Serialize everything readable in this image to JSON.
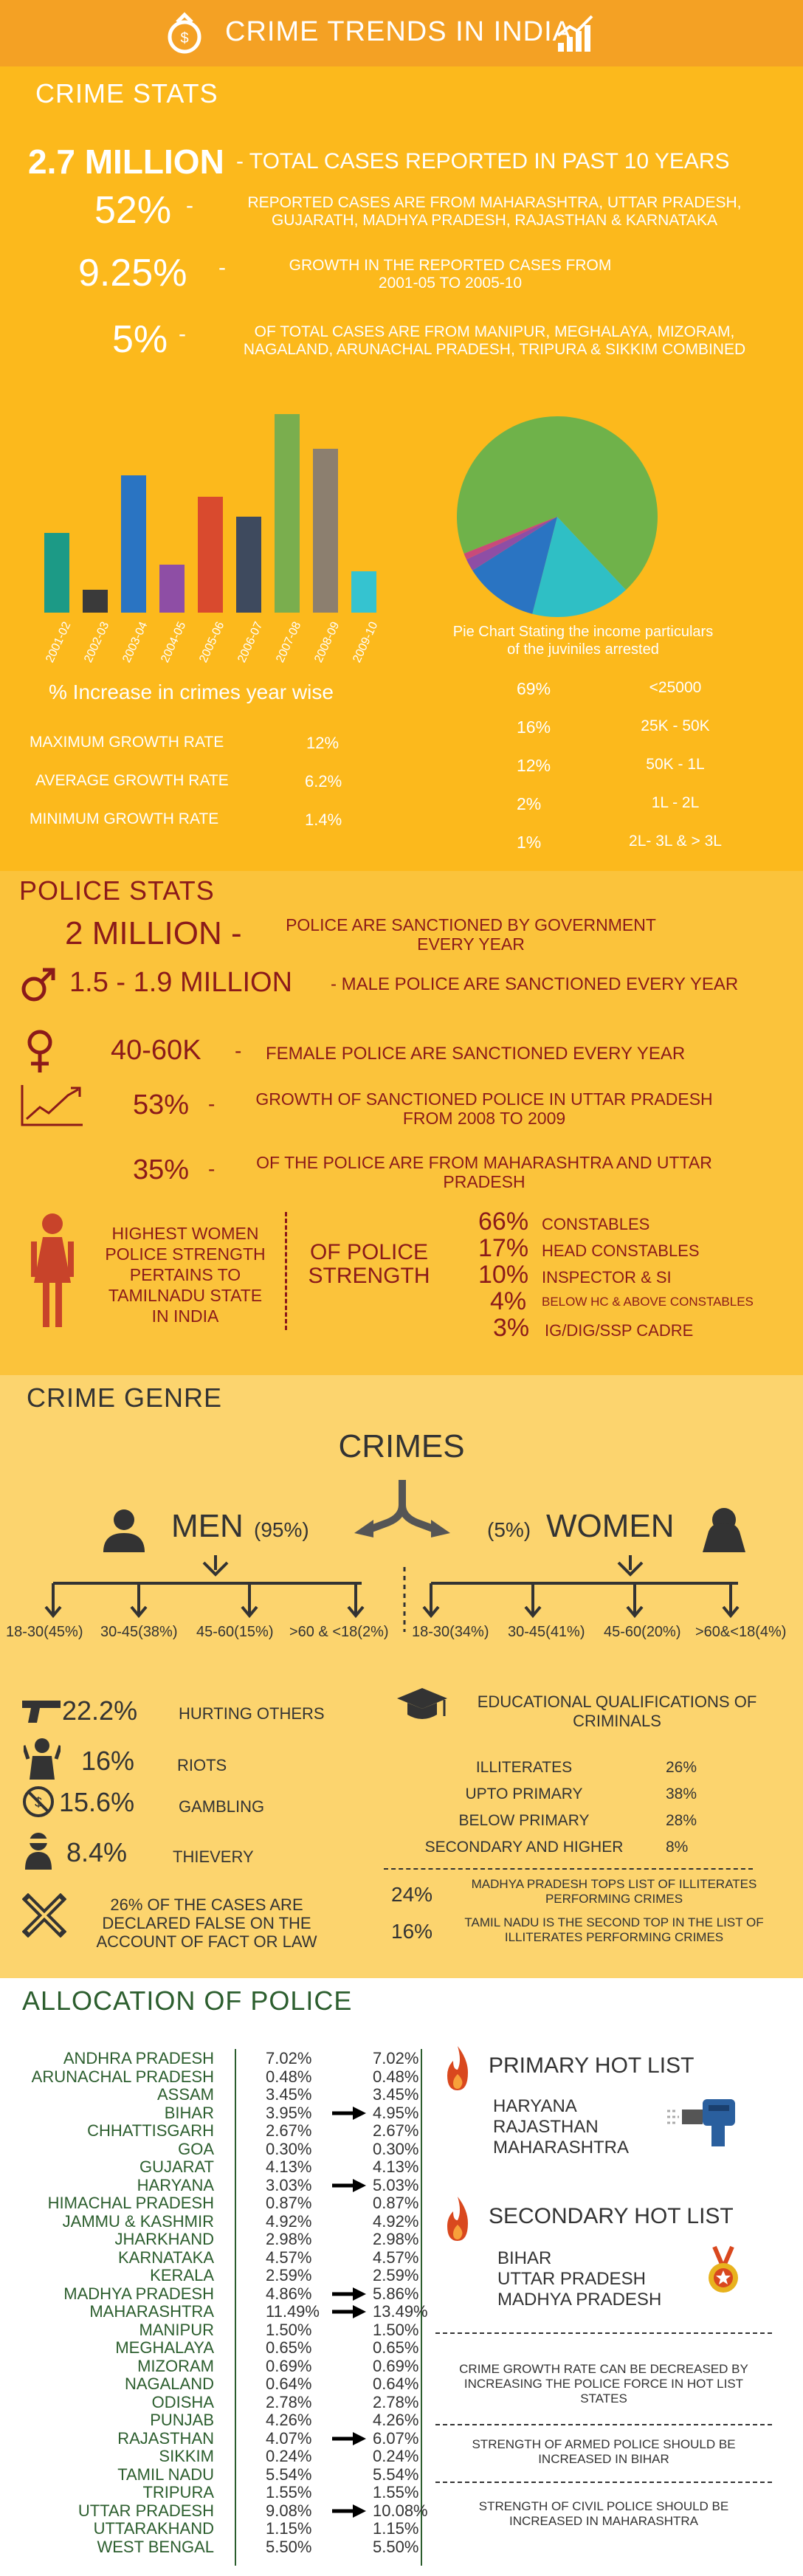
{
  "header": {
    "title": "CRIME TRENDS IN INDIA",
    "icon_left": "money-bag-icon",
    "icon_right": "growth-chart-icon"
  },
  "crime_stats": {
    "title": "CRIME STATS",
    "stats": [
      {
        "value": "2.7 MILLION",
        "text": "- TOTAL CASES REPORTED IN PAST 10 YEARS"
      },
      {
        "value": "52%",
        "text": "REPORTED CASES ARE FROM MAHARASHTRA, UTTAR PRADESH, GUJARATH, MADHYA PRADESH, RAJASTHAN & KARNATAKA"
      },
      {
        "value": "9.25%",
        "text": "GROWTH IN THE REPORTED CASES FROM 2001-05 TO 2005-10"
      },
      {
        "value": "5%",
        "text": "OF TOTAL CASES ARE FROM MANIPUR, MEGHALAYA, MIZORAM, NAGALAND, ARUNACHAL PRADESH, TRIPURA & SIKKIM COMBINED"
      }
    ],
    "stat_lines": {
      "s1_text": "- TOTAL CASES REPORTED IN PAST 10 YEARS",
      "s2_l1": "REPORTED CASES ARE FROM MAHARASHTRA, UTTAR PRADESH,",
      "s2_l2": "GUJARATH, MADHYA PRADESH, RAJASTHAN & KARNATAKA",
      "s3_l1": "GROWTH IN THE REPORTED CASES FROM",
      "s3_l2": "2001-05 TO 2005-10",
      "s4_l1": "OF TOTAL CASES ARE FROM MANIPUR, MEGHALAYA, MIZORAM,",
      "s4_l2": "NAGALAND, ARUNACHAL PRADESH, TRIPURA & SIKKIM COMBINED",
      "dash": "-"
    },
    "bar_caption": "% Increase in crimes year wise",
    "growth": [
      {
        "label": "MAXIMUM GROWTH RATE",
        "value": "12%"
      },
      {
        "label": "AVERAGE GROWTH RATE",
        "value": "6.2%"
      },
      {
        "label": "MINIMUM GROWTH RATE",
        "value": "1.4%"
      }
    ],
    "pie_caption_l1": "Pie Chart Stating the income particulars",
    "pie_caption_l2": "of the juviniles arrested",
    "pie_legend": [
      {
        "pct": "69%",
        "label": "<25000"
      },
      {
        "pct": "16%",
        "label": "25K - 50K"
      },
      {
        "pct": "12%",
        "label": "50K - 1L"
      },
      {
        "pct": "2%",
        "label": "1L - 2L"
      },
      {
        "pct": "1%",
        "label": "2L- 3L & > 3L"
      }
    ]
  },
  "chart_data": [
    {
      "type": "bar",
      "categories": [
        "2001-02",
        "2002-03",
        "2003-04",
        "2004-05",
        "2005-06",
        "2006-07",
        "2007-08",
        "2008-09",
        "2009-10"
      ],
      "values": [
        4.8,
        1.4,
        8.3,
        2.9,
        7.0,
        5.8,
        12.0,
        9.9,
        2.5
      ],
      "colors": [
        "#1c9a86",
        "#3a3a3a",
        "#2a74c2",
        "#8e4ea5",
        "#d94a2e",
        "#3e4a5e",
        "#7aae4e",
        "#8c7f6f",
        "#35c3d0"
      ],
      "title": "% Increase in crimes year wise",
      "ylim": [
        0,
        12.5
      ]
    },
    {
      "type": "pie",
      "categories": [
        "<25000",
        "25K - 50K",
        "50K - 1L",
        "1L - 2L",
        "2L- 3L & > 3L"
      ],
      "values": [
        69,
        16,
        12,
        2,
        1
      ],
      "colors": [
        "#6fb24a",
        "#2fbfc5",
        "#2a74c2",
        "#8e4ea5",
        "#c94a7a"
      ],
      "title": "Pie Chart Stating the income particulars of the juviniles arrested"
    }
  ],
  "police_stats": {
    "title": "POLICE STATS",
    "l1_value": "2 MILLION -",
    "l1_text1": "POLICE ARE  SANCTIONED BY GOVERNMENT",
    "l1_text2": "EVERY YEAR",
    "l2_value": "1.5 - 1.9 MILLION",
    "l2_text": "- MALE POLICE ARE SANCTIONED EVERY YEAR",
    "l3_value": "40-60K",
    "l3_text": "FEMALE POLICE ARE SANCTIONED EVERY YEAR",
    "l4_value": "53%",
    "l4_text1": "GROWTH OF SANCTIONED POLICE IN UTTAR PRADESH",
    "l4_text2": "FROM 2008 TO 2009",
    "l5_value": "35%",
    "l5_text1": "OF THE POLICE ARE FROM MAHARASHTRA AND UTTAR",
    "l5_text2": "PRADESH",
    "dash": "-",
    "women_text": [
      "HIGHEST WOMEN",
      "POLICE STRENGTH",
      "PERTAINS TO",
      "TAMILNADU STATE",
      "IN INDIA"
    ],
    "of_police_l1": "OF POLICE",
    "of_police_l2": "STRENGTH",
    "strength": [
      {
        "pct": "66%",
        "label": "CONSTABLES"
      },
      {
        "pct": "17%",
        "label": "HEAD CONSTABLES"
      },
      {
        "pct": "10%",
        "label": "INSPECTOR & SI"
      },
      {
        "pct": "4%",
        "label": "BELOW HC & ABOVE CONSTABLES"
      },
      {
        "pct": "3%",
        "label": "IG/DIG/SSP CADRE"
      }
    ]
  },
  "crime_genre": {
    "title": "CRIME GENRE",
    "crimes_title": "CRIMES",
    "men_label": "MEN",
    "men_pct": "(95%)",
    "women_pct": "(5%)",
    "women_label": "WOMEN",
    "men_ages": [
      "18-30(45%)",
      "30-45(38%)",
      "45-60(15%)",
      ">60 & <18(2%)"
    ],
    "women_ages": [
      "18-30(34%)",
      "30-45(41%)",
      "45-60(20%)",
      ">60&<18(4%)"
    ],
    "types": [
      {
        "pct": "22.2%",
        "label": "HURTING OTHERS",
        "icon": "gun-icon"
      },
      {
        "pct": "16%",
        "label": "RIOTS",
        "icon": "rioter-icon"
      },
      {
        "pct": "15.6%",
        "label": "GAMBLING",
        "icon": "no-gambling-icon"
      },
      {
        "pct": "8.4%",
        "label": "THIEVERY",
        "icon": "thief-icon"
      }
    ],
    "false_cases": [
      "26% OF THE CASES  ARE",
      "DECLARED FALSE ON THE",
      "ACCOUNT OF FACT OR LAW"
    ],
    "edu_title_l1": "EDUCATIONAL QUALIFICATIONS OF",
    "edu_title_l2": "CRIMINALS",
    "edu": [
      {
        "label": "ILLITERATES",
        "pct": "26%"
      },
      {
        "label": "UPTO PRIMARY",
        "pct": "38%"
      },
      {
        "label": "BELOW PRIMARY",
        "pct": "28%"
      },
      {
        "label": "SECONDARY AND HIGHER",
        "pct": "8%"
      }
    ],
    "note1_pct": "24%",
    "note1_l1": "MADHYA PRADESH TOPS LIST OF ILLITERATES",
    "note1_l2": "PERFORMING CRIMES",
    "note2_pct": "16%",
    "note2_l1": "TAMIL NADU IS THE SECOND TOP  IN THE  LIST OF",
    "note2_l2": "ILLITERATES PERFORMING CRIMES"
  },
  "allocation": {
    "title": "ALLOCATION OF POLICE",
    "rows": [
      {
        "state": "ANDHRA PRADESH",
        "v1": "7.02%",
        "v2": "7.02%",
        "arrow": false
      },
      {
        "state": "ARUNACHAL PRADESH",
        "v1": "0.48%",
        "v2": "0.48%",
        "arrow": false
      },
      {
        "state": "ASSAM",
        "v1": "3.45%",
        "v2": "3.45%",
        "arrow": false
      },
      {
        "state": "BIHAR",
        "v1": "3.95%",
        "v2": "4.95%",
        "arrow": true
      },
      {
        "state": "CHHATTISGARH",
        "v1": "2.67%",
        "v2": "2.67%",
        "arrow": false
      },
      {
        "state": "GOA",
        "v1": "0.30%",
        "v2": "0.30%",
        "arrow": false
      },
      {
        "state": "GUJARAT",
        "v1": "4.13%",
        "v2": "4.13%",
        "arrow": false
      },
      {
        "state": "HARYANA",
        "v1": "3.03%",
        "v2": "5.03%",
        "arrow": true
      },
      {
        "state": "HIMACHAL PRADESH",
        "v1": "0.87%",
        "v2": "0.87%",
        "arrow": false
      },
      {
        "state": "JAMMU & KASHMIR",
        "v1": "4.92%",
        "v2": "4.92%",
        "arrow": false
      },
      {
        "state": "JHARKHAND",
        "v1": "2.98%",
        "v2": "2.98%",
        "arrow": false
      },
      {
        "state": "KARNATAKA",
        "v1": "4.57%",
        "v2": "4.57%",
        "arrow": false
      },
      {
        "state": "KERALA",
        "v1": "2.59%",
        "v2": "2.59%",
        "arrow": false
      },
      {
        "state": "MADHYA PRADESH",
        "v1": "4.86%",
        "v2": "5.86%",
        "arrow": true
      },
      {
        "state": "MAHARASHTRA",
        "v1": "11.49%",
        "v2": "13.49%",
        "arrow": true
      },
      {
        "state": "MANIPUR",
        "v1": "1.50%",
        "v2": "1.50%",
        "arrow": false
      },
      {
        "state": "MEGHALAYA",
        "v1": "0.65%",
        "v2": "0.65%",
        "arrow": false
      },
      {
        "state": "MIZORAM",
        "v1": "0.69%",
        "v2": "0.69%",
        "arrow": false
      },
      {
        "state": "NAGALAND",
        "v1": "0.64%",
        "v2": "0.64%",
        "arrow": false
      },
      {
        "state": "ODISHA",
        "v1": "2.78%",
        "v2": "2.78%",
        "arrow": false
      },
      {
        "state": "PUNJAB",
        "v1": "4.26%",
        "v2": "4.26%",
        "arrow": false
      },
      {
        "state": "RAJASTHAN",
        "v1": "4.07%",
        "v2": "6.07%",
        "arrow": true
      },
      {
        "state": "SIKKIM",
        "v1": "0.24%",
        "v2": "0.24%",
        "arrow": false
      },
      {
        "state": "TAMIL NADU",
        "v1": "5.54%",
        "v2": "5.54%",
        "arrow": false
      },
      {
        "state": "TRIPURA",
        "v1": "1.55%",
        "v2": "1.55%",
        "arrow": false
      },
      {
        "state": "UTTAR PRADESH",
        "v1": "9.08%",
        "v2": "10.08%",
        "arrow": true
      },
      {
        "state": "UTTARAKHAND",
        "v1": "1.15%",
        "v2": "1.15%",
        "arrow": false
      },
      {
        "state": "WEST BENGAL",
        "v1": "5.50%",
        "v2": "5.50%",
        "arrow": false
      }
    ],
    "primary_title": "PRIMARY HOT LIST",
    "primary": [
      "HARYANA",
      "RAJASTHAN",
      "MAHARASHTRA"
    ],
    "secondary_title": "SECONDARY HOT LIST",
    "secondary": [
      "BIHAR",
      "UTTAR PRADESH",
      "MADHYA PRADESH"
    ],
    "note1": [
      "CRIME GROWTH RATE CAN BE DECREASED BY",
      "INCREASING THE POLICE FORCE IN HOT LIST",
      "STATES"
    ],
    "note2": [
      "STRENGTH OF ARMED POLICE  SHOULD BE",
      "INCREASED IN BIHAR"
    ],
    "note3": [
      "STRENGTH OF CIVIL POLICE SHOULD BE",
      "INCREASED IN MAHARASHTRA"
    ]
  }
}
